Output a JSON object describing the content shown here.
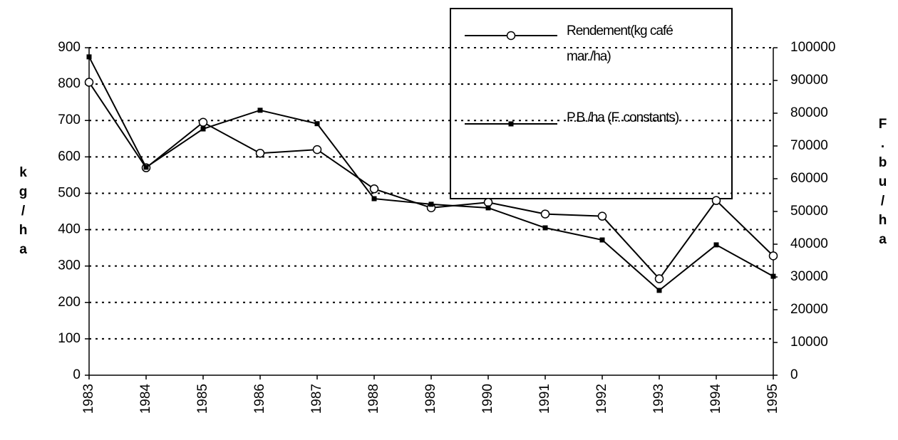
{
  "chart_data": {
    "type": "line",
    "categories": [
      "1983",
      "1984",
      "1985",
      "1986",
      "1987",
      "1988",
      "1989",
      "1990",
      "1991",
      "1992",
      "1993",
      "1994",
      "1995"
    ],
    "y_label": "kg/ha",
    "y2_label": "F.bu/ha",
    "ylim": [
      0,
      900
    ],
    "yticks": [
      0,
      100,
      200,
      300,
      400,
      500,
      600,
      700,
      800,
      900
    ],
    "y2lim": [
      0,
      100000
    ],
    "y2ticks": [
      0,
      10000,
      20000,
      30000,
      40000,
      50000,
      60000,
      70000,
      80000,
      90000,
      100000
    ],
    "grid": true,
    "legend": "top-right",
    "series": [
      {
        "name": "Rendement(kg café mar./ha)",
        "color": "#000000",
        "marker": "circle",
        "values": [
          805,
          570,
          695,
          610,
          620,
          512,
          460,
          475,
          443,
          437,
          265,
          480,
          328
        ]
      },
      {
        "name": "P.B./ha (F. constants)",
        "color": "#000000",
        "marker": "square",
        "axis": "y2",
        "values": [
          97200,
          63500,
          75200,
          80900,
          76800,
          53900,
          52200,
          51100,
          45000,
          41300,
          25900,
          39800,
          30200
        ]
      }
    ]
  }
}
